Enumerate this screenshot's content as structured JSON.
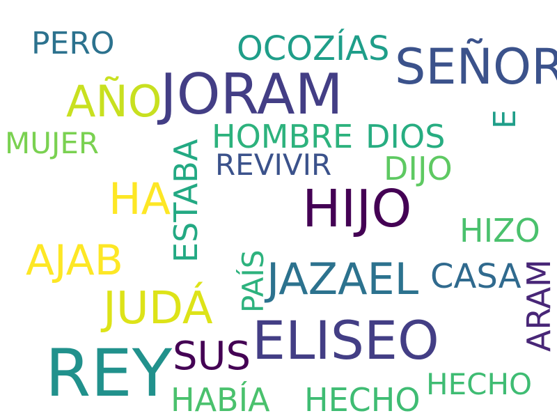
{
  "words": [
    {
      "text": "REY",
      "color": "#21918c"
    },
    {
      "text": "ELISEO",
      "color": "#433e85"
    },
    {
      "text": "JORAM",
      "color": "#433e85"
    },
    {
      "text": "HIJO",
      "color": "#440154"
    },
    {
      "text": "SEÑOR",
      "color": "#3b528b"
    },
    {
      "text": "JAZAEL",
      "color": "#2c728e"
    },
    {
      "text": "JUDÁ",
      "color": "#dde318"
    },
    {
      "text": "AJAB",
      "color": "#fde725"
    },
    {
      "text": "AÑO",
      "color": "#c8e020"
    },
    {
      "text": "HA",
      "color": "#fde725"
    },
    {
      "text": "SUS",
      "color": "#440154"
    },
    {
      "text": "HABÍA",
      "color": "#4ac16d"
    },
    {
      "text": "HECHO",
      "color": "#3fbc73"
    },
    {
      "text": "HOMBRE",
      "color": "#2db27d"
    },
    {
      "text": "DIOS",
      "color": "#27ad81"
    },
    {
      "text": "ESTABA",
      "color": "#23a983"
    },
    {
      "text": "OCOZÍAS",
      "color": "#1f9e89"
    },
    {
      "text": "CASA",
      "color": "#306a8e"
    },
    {
      "text": "ARAM",
      "color": "#482677"
    },
    {
      "text": "DIJO",
      "color": "#5ec962"
    },
    {
      "text": "HIZO",
      "color": "#4ac16d"
    },
    {
      "text": "HECHO",
      "color": "#3fbc73"
    },
    {
      "text": "REVIVIR",
      "color": "#3b528b"
    },
    {
      "text": "PERO",
      "color": "#2c728e"
    },
    {
      "text": "PAÍS",
      "color": "#2db27d"
    },
    {
      "text": "E",
      "color": "#1f9e89"
    },
    {
      "text": "MUJER",
      "color": "#7ad151"
    }
  ]
}
